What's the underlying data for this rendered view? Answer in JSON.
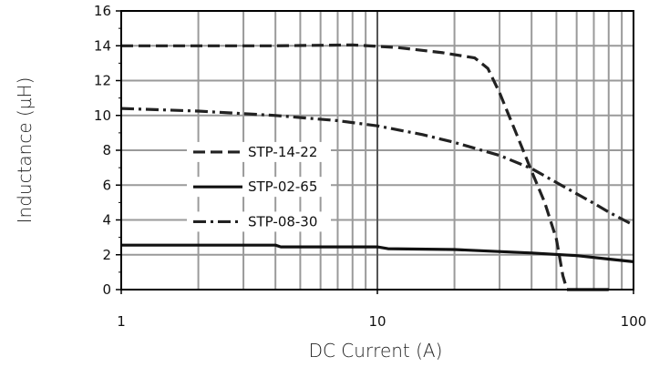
{
  "chart_data": {
    "type": "line",
    "title": "",
    "xlabel": "DC Current  (A)",
    "ylabel": "Inductance (µH)",
    "xscale": "log",
    "xlim": [
      1,
      100
    ],
    "ylim": [
      0,
      16
    ],
    "x_ticks": [
      1,
      10,
      100
    ],
    "x_tick_labels": [
      "1",
      "10",
      "100"
    ],
    "y_ticks": [
      0,
      2,
      4,
      6,
      8,
      10,
      12,
      14,
      16
    ],
    "y_tick_labels": [
      "0",
      "2",
      "4",
      "6",
      "8",
      "10",
      "12",
      "14",
      "16"
    ],
    "grid": true,
    "legend_position": "left, mid-height inside plot",
    "series": [
      {
        "name": "STP-14-22",
        "style": "dashed",
        "color": "#222222",
        "x": [
          1,
          2,
          4,
          8,
          12,
          18,
          24,
          27,
          30,
          35,
          40,
          45,
          50,
          53,
          55
        ],
        "y": [
          14.0,
          14.0,
          14.0,
          14.05,
          13.9,
          13.6,
          13.3,
          12.7,
          11.3,
          8.9,
          6.8,
          5.0,
          2.9,
          0.8,
          0.0
        ]
      },
      {
        "name": "STP-02-65",
        "style": "solid",
        "color": "#111111",
        "x": [
          1,
          2,
          4,
          4.2,
          7,
          10,
          11,
          20,
          40,
          60,
          80,
          100
        ],
        "y": [
          2.55,
          2.55,
          2.55,
          2.45,
          2.45,
          2.45,
          2.35,
          2.3,
          2.1,
          1.95,
          1.75,
          1.6
        ]
      },
      {
        "name": "STP-08-30",
        "style": "dash-dot",
        "color": "#222222",
        "x": [
          1,
          2,
          4,
          7,
          10,
          15,
          20,
          30,
          40,
          50,
          60,
          70,
          80,
          100
        ],
        "y": [
          10.4,
          10.25,
          10.0,
          9.7,
          9.4,
          8.9,
          8.45,
          7.7,
          6.95,
          6.15,
          5.5,
          4.95,
          4.45,
          3.7
        ]
      },
      {
        "name": "",
        "style": "solid",
        "color": "#111111",
        "x": [
          55,
          80
        ],
        "y": [
          0.0,
          0.0
        ]
      }
    ]
  }
}
